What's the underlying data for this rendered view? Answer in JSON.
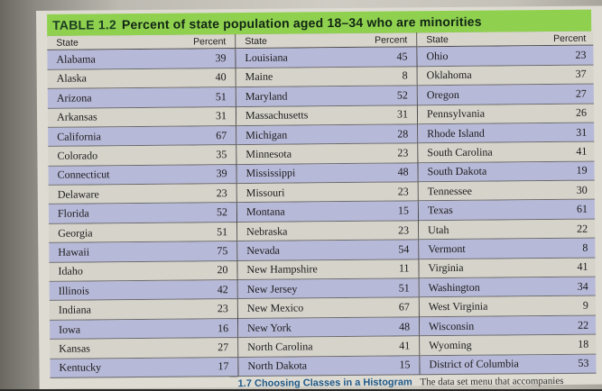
{
  "table": {
    "label": "TABLE 1.2",
    "title": "Percent of state population aged 18–34 who are minorities",
    "headers": {
      "state": "State",
      "percent": "Percent"
    },
    "columns": [
      [
        {
          "state": "Alabama",
          "percent": "39"
        },
        {
          "state": "Alaska",
          "percent": "40"
        },
        {
          "state": "Arizona",
          "percent": "51"
        },
        {
          "state": "Arkansas",
          "percent": "31"
        },
        {
          "state": "California",
          "percent": "67"
        },
        {
          "state": "Colorado",
          "percent": "35"
        },
        {
          "state": "Connecticut",
          "percent": "39"
        },
        {
          "state": "Delaware",
          "percent": "23"
        },
        {
          "state": "Florida",
          "percent": "52"
        },
        {
          "state": "Georgia",
          "percent": "51"
        },
        {
          "state": "Hawaii",
          "percent": "75"
        },
        {
          "state": "Idaho",
          "percent": "20"
        },
        {
          "state": "Illinois",
          "percent": "42"
        },
        {
          "state": "Indiana",
          "percent": "23"
        },
        {
          "state": "Iowa",
          "percent": "16"
        },
        {
          "state": "Kansas",
          "percent": "27"
        },
        {
          "state": "Kentucky",
          "percent": "17"
        }
      ],
      [
        {
          "state": "Louisiana",
          "percent": "45"
        },
        {
          "state": "Maine",
          "percent": "8"
        },
        {
          "state": "Maryland",
          "percent": "52"
        },
        {
          "state": "Massachusetts",
          "percent": "31"
        },
        {
          "state": "Michigan",
          "percent": "28"
        },
        {
          "state": "Minnesota",
          "percent": "23"
        },
        {
          "state": "Mississippi",
          "percent": "48"
        },
        {
          "state": "Missouri",
          "percent": "23"
        },
        {
          "state": "Montana",
          "percent": "15"
        },
        {
          "state": "Nebraska",
          "percent": "23"
        },
        {
          "state": "Nevada",
          "percent": "54"
        },
        {
          "state": "New Hampshire",
          "percent": "11"
        },
        {
          "state": "New Jersey",
          "percent": "51"
        },
        {
          "state": "New Mexico",
          "percent": "67"
        },
        {
          "state": "New York",
          "percent": "48"
        },
        {
          "state": "North Carolina",
          "percent": "41"
        },
        {
          "state": "North Dakota",
          "percent": "15"
        }
      ],
      [
        {
          "state": "Ohio",
          "percent": "23"
        },
        {
          "state": "Oklahoma",
          "percent": "37"
        },
        {
          "state": "Oregon",
          "percent": "27"
        },
        {
          "state": "Pennsylvania",
          "percent": "26"
        },
        {
          "state": "Rhode Island",
          "percent": "31"
        },
        {
          "state": "South Carolina",
          "percent": "41"
        },
        {
          "state": "South Dakota",
          "percent": "19"
        },
        {
          "state": "Tennessee",
          "percent": "30"
        },
        {
          "state": "Texas",
          "percent": "61"
        },
        {
          "state": "Utah",
          "percent": "22"
        },
        {
          "state": "Vermont",
          "percent": "8"
        },
        {
          "state": "Virginia",
          "percent": "41"
        },
        {
          "state": "Washington",
          "percent": "34"
        },
        {
          "state": "West Virginia",
          "percent": "9"
        },
        {
          "state": "Wisconsin",
          "percent": "22"
        },
        {
          "state": "Wyoming",
          "percent": "18"
        },
        {
          "state": "District of Columbia",
          "percent": "53"
        }
      ]
    ]
  },
  "footer": {
    "section_heading": "1.7 Choosing Classes in a Histogram",
    "text": "The data set menu that accompanies"
  }
}
